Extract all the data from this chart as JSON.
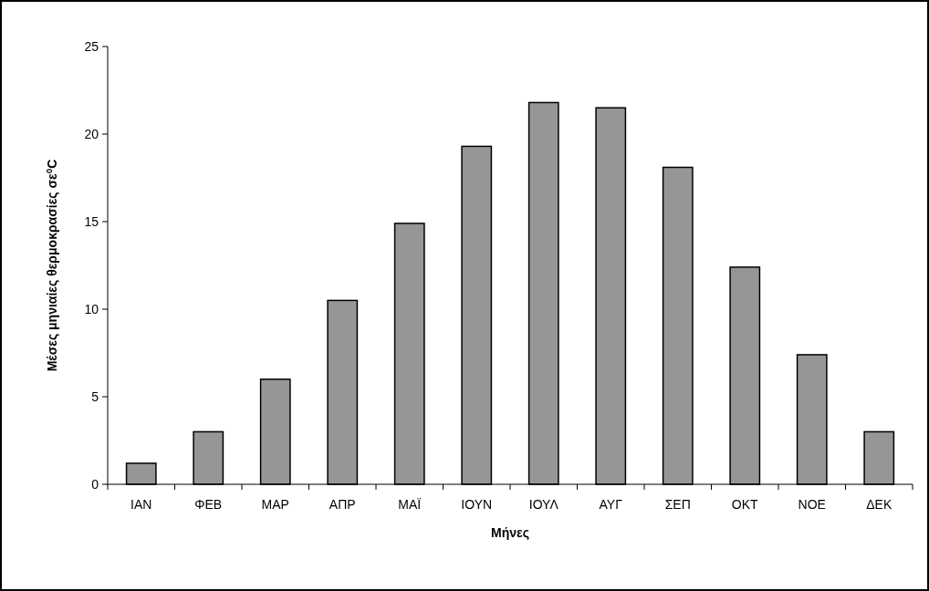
{
  "chart_data": {
    "type": "bar",
    "xlabel": "Μήνες",
    "ylabel": "Μέσες μηνιαίες θερμοκρασίες σε$^{0}$C",
    "categories": [
      "ΙΑΝ",
      "ΦΕΒ",
      "ΜΑΡ",
      "ΑΠΡ",
      "ΜΑΪ",
      "ΙΟΥΝ",
      "ΙΟΥΛ",
      "ΑΥΓ",
      "ΣΕΠ",
      "ΟΚΤ",
      "ΝΟΕ",
      "ΔΕΚ"
    ],
    "values": [
      1.2,
      3.0,
      6.0,
      10.5,
      14.9,
      19.3,
      21.8,
      21.5,
      18.1,
      12.4,
      7.4,
      3.0
    ],
    "color": "#969696",
    "ylim": [
      0,
      25
    ],
    "yticks": [
      0,
      5,
      10,
      15,
      20,
      25
    ],
    "grid": false
  }
}
